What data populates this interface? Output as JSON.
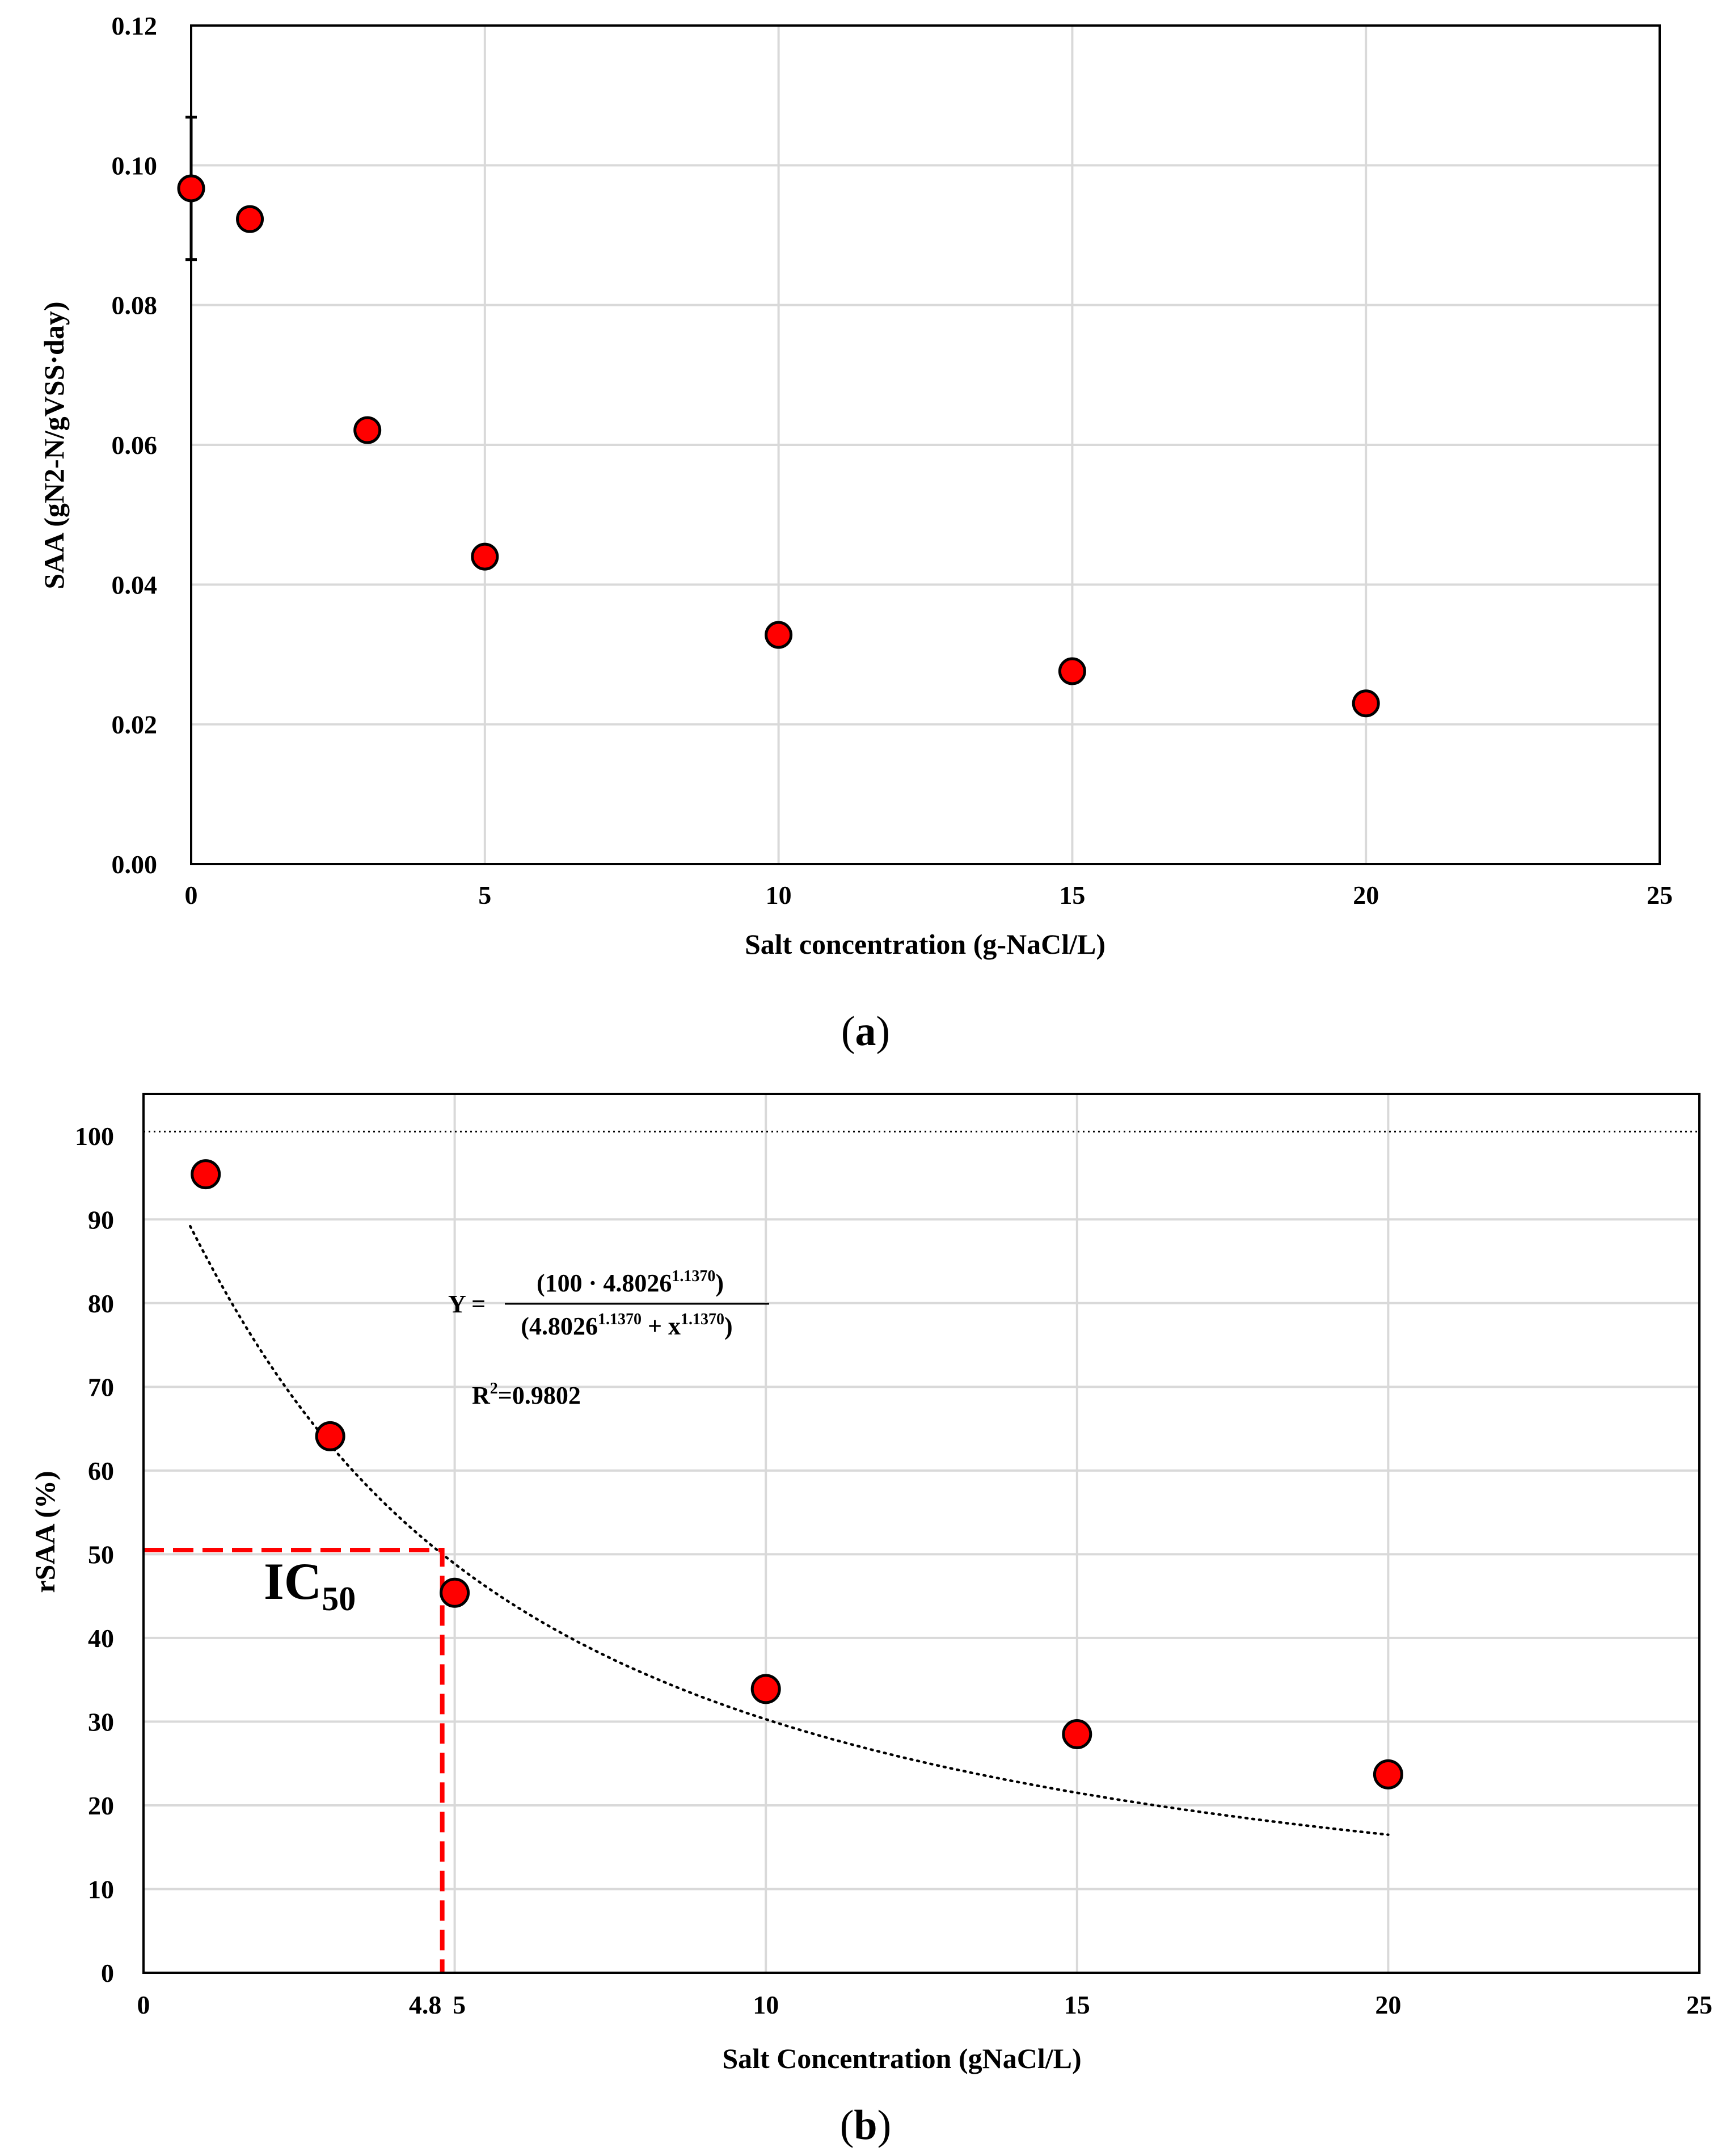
{
  "colors": {
    "marker_fill": "#ff0000",
    "marker_stroke": "#000000",
    "ic50_line": "#ff0000",
    "grid": "#d9d9d9",
    "axis": "#000000"
  },
  "chart_data": [
    {
      "type": "scatter",
      "panel_label": "a",
      "title": "",
      "xlabel": "Salt concentration (g-NaCl/L)",
      "ylabel": "SAA (gN2-N/gVSS·day)",
      "xlim": [
        0,
        25
      ],
      "ylim": [
        0,
        0.12
      ],
      "xticks": [
        0,
        5,
        10,
        15,
        20,
        25
      ],
      "xtick_labels": [
        "0",
        "5",
        "10",
        "15",
        "20",
        "25"
      ],
      "yticks": [
        0,
        0.02,
        0.04,
        0.06,
        0.08,
        0.1,
        0.12
      ],
      "ytick_labels": [
        "0.00",
        "0.02",
        "0.04",
        "0.06",
        "0.08",
        "0.10",
        "0.12"
      ],
      "grid": true,
      "series": [
        {
          "name": "SAA",
          "x": [
            0,
            1,
            3,
            5,
            10,
            15,
            20
          ],
          "y": [
            0.0967,
            0.0923,
            0.0621,
            0.044,
            0.0328,
            0.0276,
            0.023
          ],
          "error": [
            0.0102,
            0,
            0,
            0,
            0,
            0,
            0
          ]
        }
      ]
    },
    {
      "type": "scatter",
      "panel_label": "b",
      "title": "",
      "xlabel": "Salt Concentration (gNaCl/L)",
      "ylabel": "rSAA (%)",
      "xlim": [
        0,
        25
      ],
      "ylim": [
        0,
        105
      ],
      "xticks": [
        0,
        4.8,
        5,
        10,
        15,
        20,
        25
      ],
      "xtick_labels": [
        "0",
        "4.8",
        "5",
        "10",
        "15",
        "20",
        "25"
      ],
      "yticks": [
        0,
        10,
        20,
        30,
        40,
        50,
        60,
        70,
        80,
        90,
        100
      ],
      "ytick_labels": [
        "0",
        "10",
        "20",
        "30",
        "40",
        "50",
        "60",
        "70",
        "80",
        "90",
        "100"
      ],
      "grid": true,
      "reference_line_y": 100.5,
      "series": [
        {
          "name": "rSAA",
          "x": [
            1,
            3,
            5,
            10,
            15,
            20
          ],
          "y": [
            95.4,
            64.1,
            45.4,
            33.9,
            28.5,
            23.7
          ],
          "error": [
            1.3,
            0.8,
            0.6,
            0.5,
            0.5,
            0.5
          ]
        }
      ],
      "fit": {
        "ic50": 4.8026,
        "slope": 1.137,
        "x_range": [
          0.75,
          20
        ]
      },
      "ic50_marker": {
        "x": 4.8,
        "y": 50.5
      },
      "ic50_label": "IC",
      "ic50_label_sub": "50",
      "equation": {
        "lhs": "Y =",
        "numerator_a": "(100 · 4.8026",
        "numerator_exp": "1.1370",
        "numerator_b": ")",
        "denominator_a": "(4.8026",
        "denominator_exp1": "1.1370",
        "denominator_b": " + x",
        "denominator_exp2": "1.1370",
        "denominator_c": ")"
      },
      "r2": {
        "prefix": "R",
        "sup": "2",
        "value": "=0.9802"
      }
    }
  ]
}
